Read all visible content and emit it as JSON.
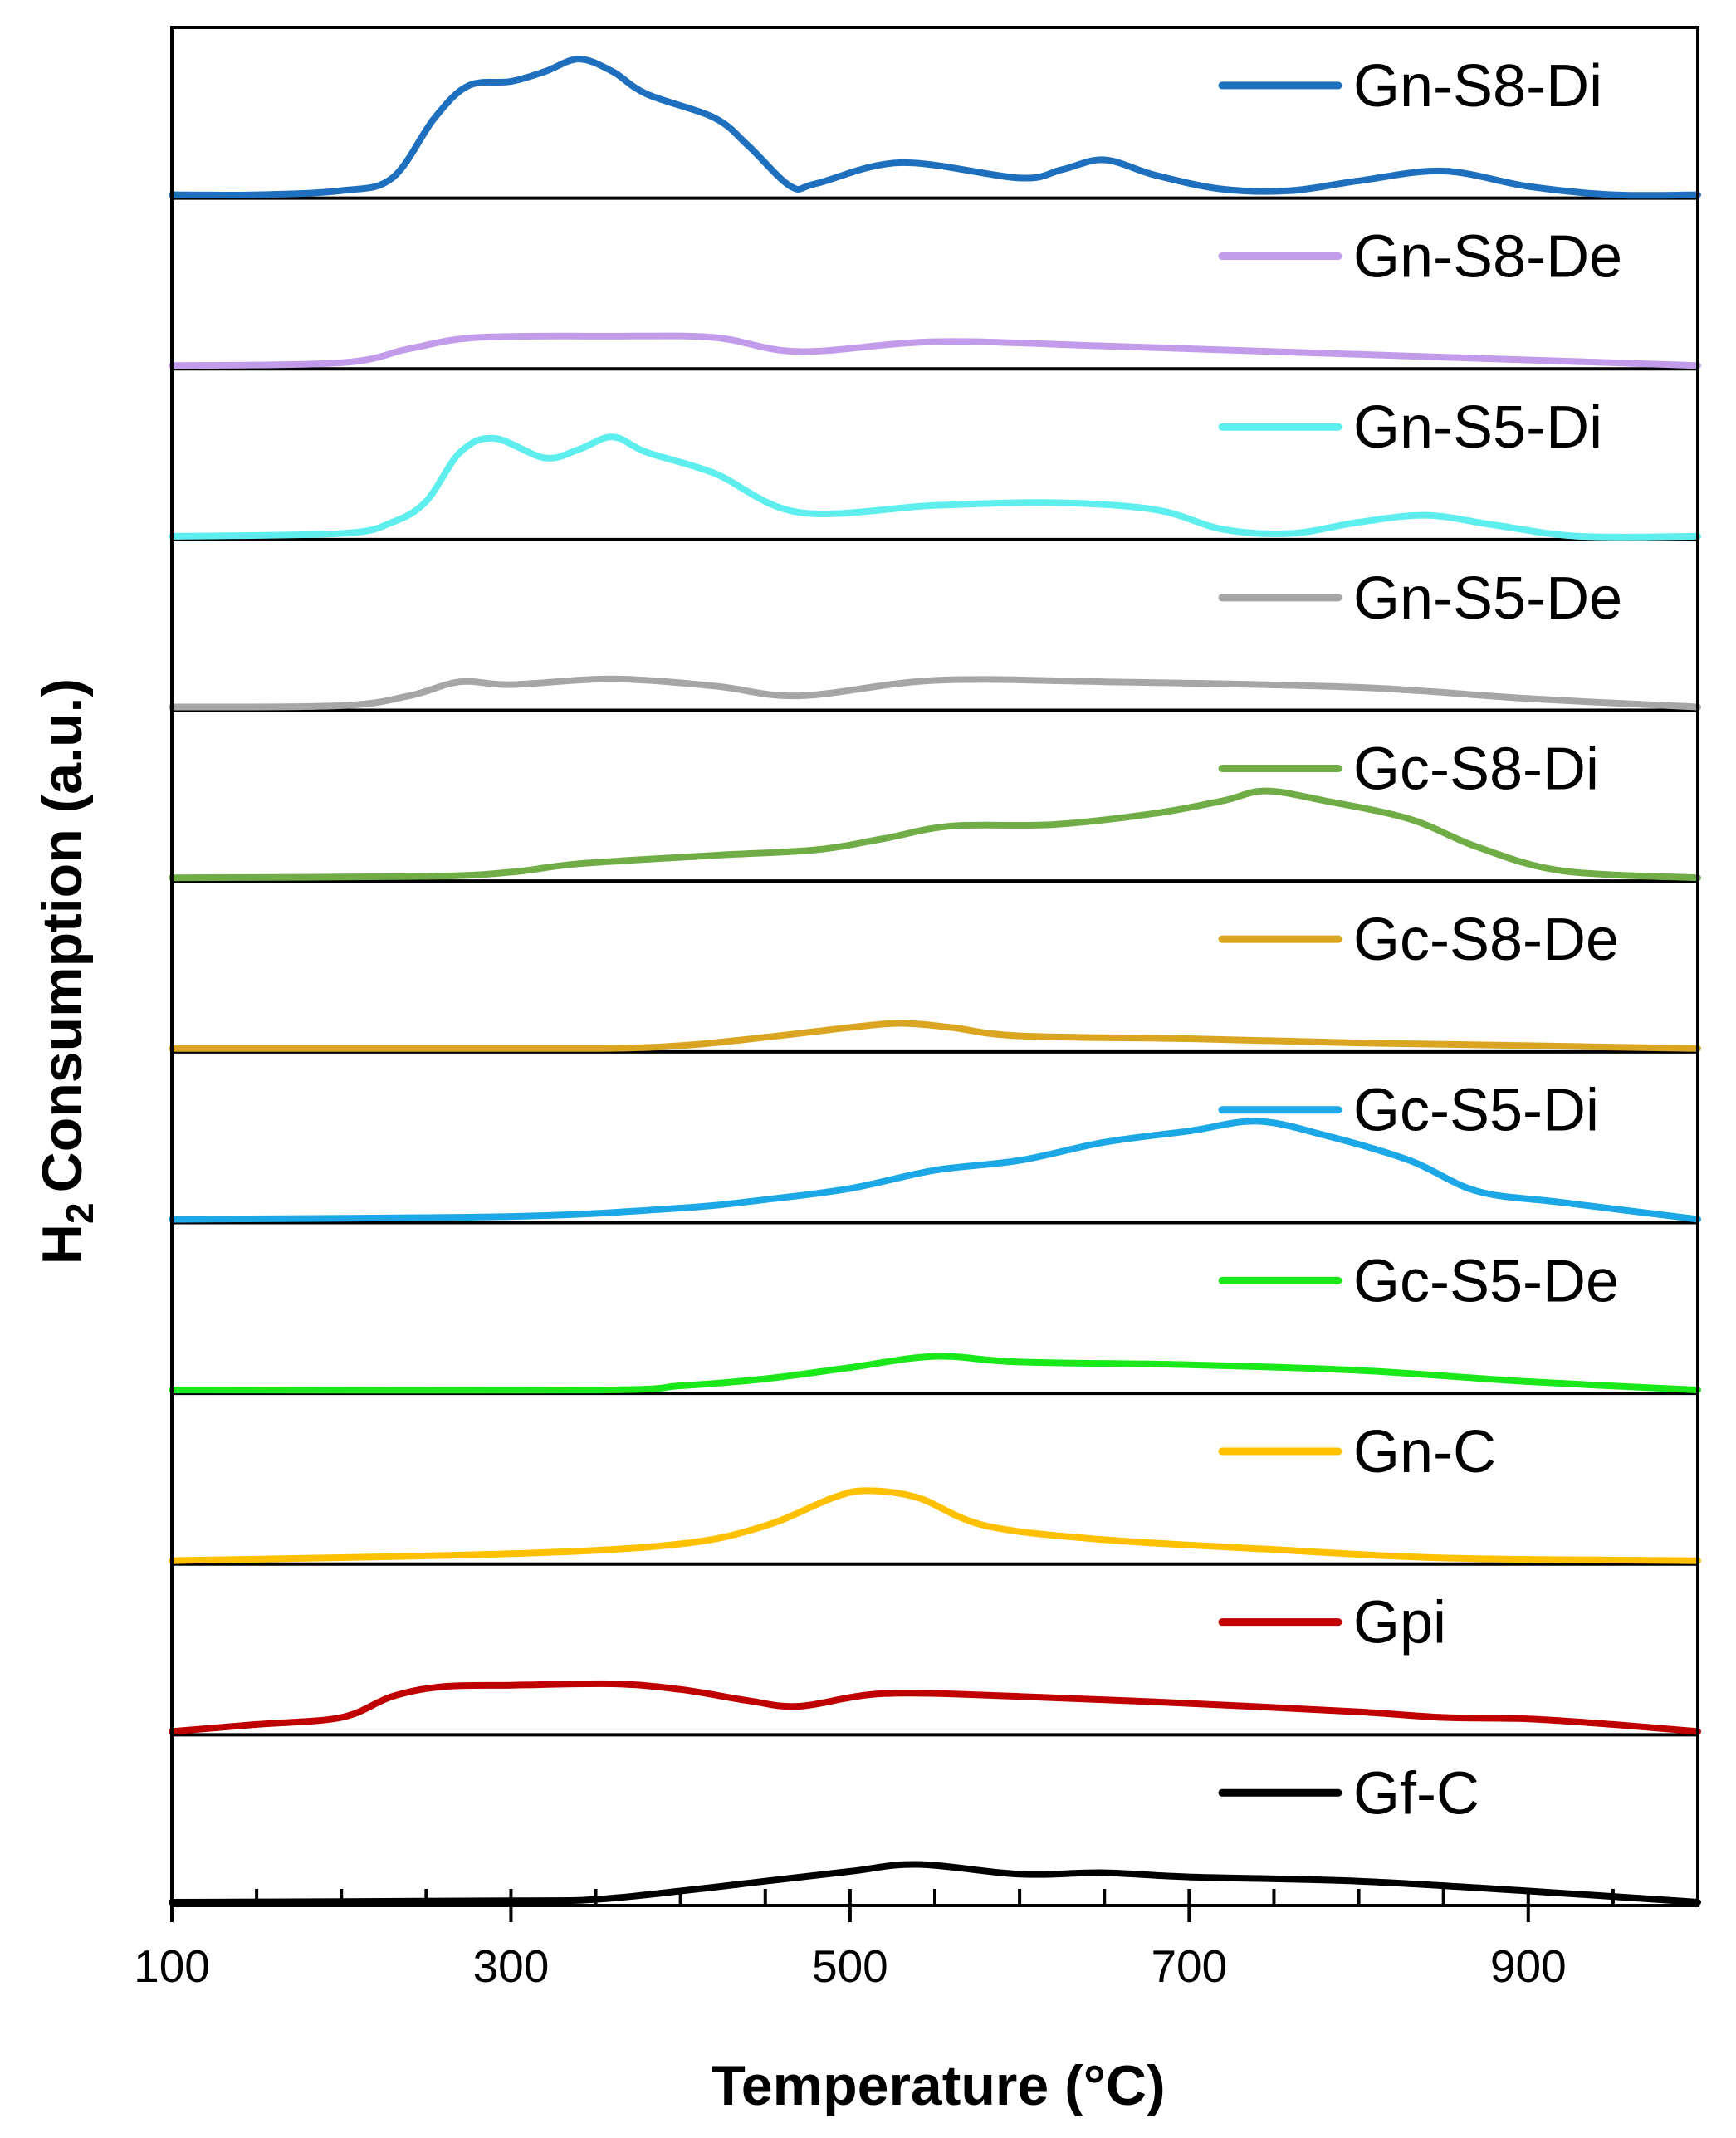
{
  "chart_data": {
    "type": "line",
    "layout": "stacked-panels",
    "title": "",
    "xlabel": "Temperature (°C)",
    "ylabel_main": "H",
    "ylabel_sub": "2",
    "ylabel_rest": "Consumption (a.u.)",
    "xlim": [
      100,
      1000
    ],
    "x_ticks": [
      100,
      300,
      500,
      700,
      900
    ],
    "x_tick_labels": [
      "100",
      "300",
      "500",
      "700",
      "900"
    ],
    "x_minor_step": 50,
    "panel_ylim": [
      0,
      1
    ],
    "series": [
      {
        "name": "Gn-S8-Di",
        "color": "#1F6FBF",
        "points": [
          [
            100,
            0.0
          ],
          [
            150,
            0.0
          ],
          [
            200,
            0.03
          ],
          [
            230,
            0.12
          ],
          [
            255,
            0.55
          ],
          [
            275,
            0.78
          ],
          [
            300,
            0.81
          ],
          [
            320,
            0.88
          ],
          [
            340,
            0.97
          ],
          [
            360,
            0.88
          ],
          [
            380,
            0.72
          ],
          [
            420,
            0.55
          ],
          [
            440,
            0.35
          ],
          [
            465,
            0.06
          ],
          [
            480,
            0.08
          ],
          [
            530,
            0.23
          ],
          [
            600,
            0.12
          ],
          [
            625,
            0.18
          ],
          [
            650,
            0.25
          ],
          [
            680,
            0.14
          ],
          [
            720,
            0.04
          ],
          [
            760,
            0.03
          ],
          [
            800,
            0.1
          ],
          [
            850,
            0.17
          ],
          [
            900,
            0.06
          ],
          [
            950,
            0.0
          ],
          [
            1000,
            0.0
          ]
        ]
      },
      {
        "name": "Gn-S8-De",
        "color": "#C39BEB",
        "points": [
          [
            100,
            0.0
          ],
          [
            200,
            0.02
          ],
          [
            240,
            0.12
          ],
          [
            280,
            0.2
          ],
          [
            360,
            0.21
          ],
          [
            420,
            0.2
          ],
          [
            470,
            0.1
          ],
          [
            550,
            0.17
          ],
          [
            650,
            0.14
          ],
          [
            800,
            0.08
          ],
          [
            1000,
            0.0
          ]
        ]
      },
      {
        "name": "Gn-S5-Di",
        "color": "#5FEEEE",
        "points": [
          [
            100,
            0.0
          ],
          [
            200,
            0.02
          ],
          [
            230,
            0.1
          ],
          [
            250,
            0.25
          ],
          [
            270,
            0.6
          ],
          [
            290,
            0.7
          ],
          [
            320,
            0.56
          ],
          [
            340,
            0.62
          ],
          [
            360,
            0.71
          ],
          [
            380,
            0.6
          ],
          [
            420,
            0.45
          ],
          [
            470,
            0.17
          ],
          [
            550,
            0.22
          ],
          [
            620,
            0.24
          ],
          [
            680,
            0.19
          ],
          [
            720,
            0.05
          ],
          [
            760,
            0.02
          ],
          [
            800,
            0.1
          ],
          [
            840,
            0.15
          ],
          [
            880,
            0.08
          ],
          [
            930,
            0.0
          ],
          [
            1000,
            0.0
          ]
        ]
      },
      {
        "name": "Gn-S5-De",
        "color": "#A6A6A6",
        "points": [
          [
            100,
            0.0
          ],
          [
            200,
            0.01
          ],
          [
            240,
            0.08
          ],
          [
            270,
            0.18
          ],
          [
            300,
            0.16
          ],
          [
            360,
            0.2
          ],
          [
            420,
            0.15
          ],
          [
            470,
            0.08
          ],
          [
            550,
            0.19
          ],
          [
            650,
            0.18
          ],
          [
            800,
            0.14
          ],
          [
            900,
            0.06
          ],
          [
            1000,
            0.0
          ]
        ]
      },
      {
        "name": "Gc-S8-Di",
        "color": "#70AD47",
        "points": [
          [
            100,
            0.0
          ],
          [
            250,
            0.01
          ],
          [
            300,
            0.04
          ],
          [
            340,
            0.1
          ],
          [
            420,
            0.16
          ],
          [
            480,
            0.2
          ],
          [
            520,
            0.28
          ],
          [
            560,
            0.37
          ],
          [
            620,
            0.38
          ],
          [
            680,
            0.46
          ],
          [
            720,
            0.55
          ],
          [
            745,
            0.62
          ],
          [
            780,
            0.55
          ],
          [
            830,
            0.42
          ],
          [
            870,
            0.22
          ],
          [
            920,
            0.05
          ],
          [
            1000,
            0.0
          ]
        ]
      },
      {
        "name": "Gc-S8-De",
        "color": "#DAA520",
        "points": [
          [
            100,
            0.0
          ],
          [
            250,
            0.0
          ],
          [
            350,
            0.0
          ],
          [
            400,
            0.02
          ],
          [
            450,
            0.08
          ],
          [
            500,
            0.15
          ],
          [
            530,
            0.18
          ],
          [
            560,
            0.15
          ],
          [
            600,
            0.09
          ],
          [
            700,
            0.07
          ],
          [
            800,
            0.04
          ],
          [
            900,
            0.02
          ],
          [
            1000,
            0.0
          ]
        ]
      },
      {
        "name": "Gc-S5-Di",
        "color": "#1CA7E6",
        "points": [
          [
            100,
            0.0
          ],
          [
            300,
            0.02
          ],
          [
            400,
            0.08
          ],
          [
            450,
            0.14
          ],
          [
            500,
            0.22
          ],
          [
            550,
            0.35
          ],
          [
            600,
            0.42
          ],
          [
            650,
            0.55
          ],
          [
            700,
            0.63
          ],
          [
            740,
            0.7
          ],
          [
            780,
            0.6
          ],
          [
            830,
            0.42
          ],
          [
            870,
            0.2
          ],
          [
            920,
            0.12
          ],
          [
            1000,
            0.0
          ]
        ]
      },
      {
        "name": "Gc-S5-De",
        "color": "#1AE81A",
        "points": [
          [
            100,
            0.0
          ],
          [
            350,
            0.0
          ],
          [
            400,
            0.03
          ],
          [
            450,
            0.08
          ],
          [
            500,
            0.16
          ],
          [
            550,
            0.24
          ],
          [
            600,
            0.2
          ],
          [
            700,
            0.18
          ],
          [
            800,
            0.14
          ],
          [
            900,
            0.06
          ],
          [
            1000,
            0.0
          ]
        ]
      },
      {
        "name": "Gn-C",
        "color": "#FFC000",
        "points": [
          [
            100,
            0.0
          ],
          [
            300,
            0.05
          ],
          [
            400,
            0.12
          ],
          [
            450,
            0.25
          ],
          [
            490,
            0.45
          ],
          [
            510,
            0.5
          ],
          [
            540,
            0.45
          ],
          [
            580,
            0.25
          ],
          [
            650,
            0.15
          ],
          [
            750,
            0.08
          ],
          [
            850,
            0.02
          ],
          [
            1000,
            0.0
          ]
        ]
      },
      {
        "name": "Gpi",
        "color": "#C00000",
        "points": [
          [
            100,
            0.0
          ],
          [
            150,
            0.05
          ],
          [
            200,
            0.1
          ],
          [
            230,
            0.25
          ],
          [
            260,
            0.32
          ],
          [
            300,
            0.33
          ],
          [
            360,
            0.34
          ],
          [
            400,
            0.3
          ],
          [
            440,
            0.22
          ],
          [
            470,
            0.18
          ],
          [
            520,
            0.27
          ],
          [
            600,
            0.25
          ],
          [
            700,
            0.2
          ],
          [
            800,
            0.14
          ],
          [
            850,
            0.1
          ],
          [
            900,
            0.09
          ],
          [
            950,
            0.05
          ],
          [
            1000,
            0.0
          ]
        ]
      },
      {
        "name": "Gf-C",
        "color": "#000000",
        "points": [
          [
            100,
            0.0
          ],
          [
            300,
            0.01
          ],
          [
            350,
            0.02
          ],
          [
            400,
            0.08
          ],
          [
            450,
            0.15
          ],
          [
            500,
            0.22
          ],
          [
            540,
            0.27
          ],
          [
            600,
            0.2
          ],
          [
            650,
            0.21
          ],
          [
            700,
            0.18
          ],
          [
            800,
            0.15
          ],
          [
            900,
            0.08
          ],
          [
            1000,
            0.0
          ]
        ]
      }
    ]
  }
}
